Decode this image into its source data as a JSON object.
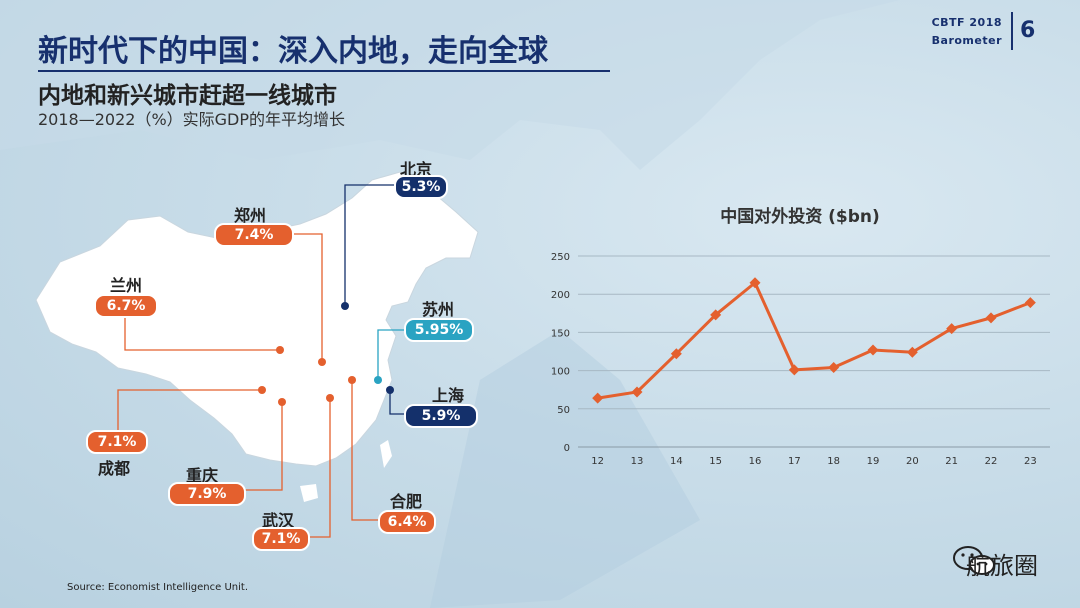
{
  "header": {
    "title": "新时代下的中国：深入内地，走向全球",
    "subtitle": "内地和新兴城市赶超一线城市",
    "subline": "2018—2022（%）实际GDP的年平均增长",
    "brand_line1": "CBTF 2018",
    "brand_line2": "Barometer",
    "page_number": "6"
  },
  "cities": [
    {
      "name": "北京",
      "value": "5.3%",
      "color": "navy"
    },
    {
      "name": "郑州",
      "value": "7.4%",
      "color": "orange"
    },
    {
      "name": "兰州",
      "value": "6.7%",
      "color": "orange"
    },
    {
      "name": "苏州",
      "value": "5.95%",
      "color": "teal"
    },
    {
      "name": "上海",
      "value": "5.9%",
      "color": "navy"
    },
    {
      "name": "成都",
      "value": "7.1%",
      "color": "orange"
    },
    {
      "name": "重庆",
      "value": "7.9%",
      "color": "orange"
    },
    {
      "name": "武汉",
      "value": "7.1%",
      "color": "orange"
    },
    {
      "name": "合肥",
      "value": "6.4%",
      "color": "orange"
    }
  ],
  "colors": {
    "orange": "#e4602e",
    "navy": "#14306b",
    "teal": "#2aa3c2",
    "title": "#17306e"
  },
  "source": "Source: Economist Intelligence Unit.",
  "watermark": "航旅圈",
  "chart_data": {
    "type": "line",
    "title": "中国对外投资 ($bn)",
    "xlabel": "",
    "ylabel": "",
    "x": [
      "12",
      "13",
      "14",
      "15",
      "16",
      "17",
      "18",
      "19",
      "20",
      "21",
      "22",
      "23"
    ],
    "series": [
      {
        "values": [
          64,
          72,
          122,
          173,
          215,
          101,
          104,
          127,
          124,
          155,
          169,
          189
        ]
      }
    ],
    "ylim": [
      0,
      250
    ],
    "yticks": [
      "0",
      "50",
      "100",
      "150",
      "200",
      "250"
    ],
    "grid": true,
    "line_color": "#e4602e"
  }
}
